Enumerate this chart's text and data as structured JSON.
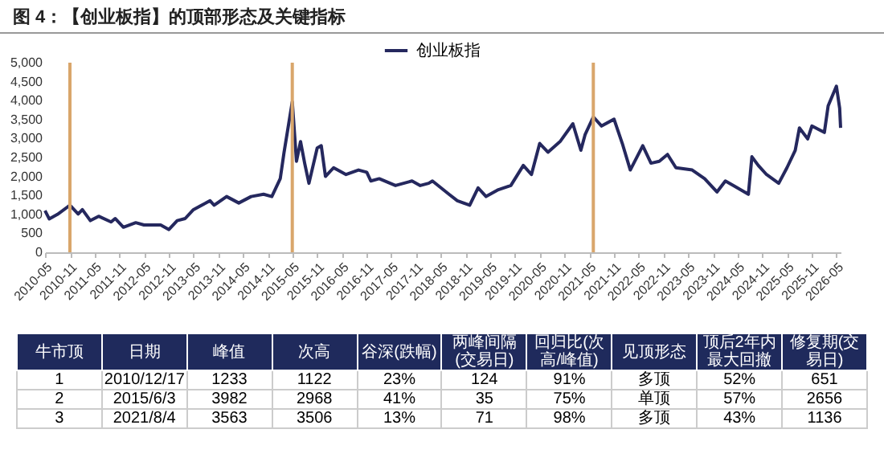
{
  "chart_data": {
    "type": "line",
    "title": "图 4：【创业板指】的顶部形态及关键指标",
    "x": [
      "2010-05",
      "2010-06",
      "2010-08",
      "2010-11",
      "2011-01",
      "2011-02",
      "2011-04",
      "2011-06",
      "2011-09",
      "2011-10",
      "2011-12",
      "2012-03",
      "2012-05",
      "2012-09",
      "2012-11",
      "2013-01",
      "2013-03",
      "2013-05",
      "2013-09",
      "2013-10",
      "2014-01",
      "2014-04",
      "2014-07",
      "2014-10",
      "2014-12",
      "2015-02",
      "2015-03",
      "2015-05",
      "2015-06",
      "2015-07",
      "2015-08",
      "2015-09",
      "2015-11",
      "2015-12",
      "2016-01",
      "2016-03",
      "2016-06",
      "2016-09",
      "2016-11",
      "2016-12",
      "2017-02",
      "2017-06",
      "2017-10",
      "2017-12",
      "2018-02",
      "2018-03",
      "2018-07",
      "2018-09",
      "2018-12",
      "2019-02",
      "2019-04",
      "2019-07",
      "2019-10",
      "2020-01",
      "2020-03",
      "2020-05",
      "2020-07",
      "2020-10",
      "2021-01",
      "2021-03",
      "2021-04",
      "2021-06",
      "2021-08",
      "2021-11",
      "2022-01",
      "2022-03",
      "2022-06",
      "2022-08",
      "2022-10",
      "2022-12",
      "2023-02",
      "2023-06",
      "2023-09",
      "2023-12",
      "2024-02",
      "2024-04",
      "2024-07-20",
      "2024-08-15",
      "2024-10",
      "2024-12",
      "2025-03",
      "2025-05",
      "2025-07",
      "2025-08",
      "2025-10",
      "2025-11",
      "2026-02",
      "2026-03",
      "2026-05",
      "2026-05-25",
      "2026-06"
    ],
    "series": [
      {
        "name": "创业板指",
        "color": "#25285e",
        "values": [
          1100,
          880,
          1000,
          1240,
          1010,
          1125,
          835,
          950,
          800,
          890,
          660,
          780,
          720,
          720,
          600,
          835,
          890,
          1125,
          1360,
          1240,
          1470,
          1300,
          1470,
          1530,
          1470,
          1940,
          2630,
          3970,
          2400,
          2920,
          2340,
          1820,
          2750,
          2810,
          2000,
          2230,
          2050,
          2170,
          2110,
          1880,
          1940,
          1760,
          1880,
          1760,
          1820,
          1880,
          1530,
          1360,
          1240,
          1700,
          1470,
          1650,
          1760,
          2290,
          2050,
          2870,
          2640,
          2930,
          3390,
          2690,
          3100,
          3570,
          3330,
          3510,
          2870,
          2170,
          2810,
          2350,
          2400,
          2580,
          2230,
          2170,
          1940,
          1590,
          1880,
          1760,
          1530,
          2520,
          2290,
          2050,
          1820,
          2230,
          2690,
          3280,
          2990,
          3330,
          3160,
          3860,
          4380,
          3800,
          3280
        ]
      }
    ],
    "xlim": [
      "2010-05",
      "2026-06"
    ],
    "xticks": [
      "2010-05",
      "2010-11",
      "2011-05",
      "2011-11",
      "2012-05",
      "2012-11",
      "2013-05",
      "2013-11",
      "2014-05",
      "2014-11",
      "2015-05",
      "2015-11",
      "2016-05",
      "2016-11",
      "2017-05",
      "2017-11",
      "2018-05",
      "2018-11",
      "2019-05",
      "2019-11",
      "2020-05",
      "2020-11",
      "2021-05",
      "2021-11",
      "2022-05",
      "2022-11",
      "2023-05",
      "2023-11",
      "2024-05",
      "2024-11",
      "2025-05",
      "2025-11",
      "2026-05"
    ],
    "ylim": [
      0,
      5000
    ],
    "yticks": [
      0,
      500,
      {
        "value": 1000,
        "label": "1,000"
      },
      {
        "value": 1500,
        "label": "1,500"
      },
      {
        "value": 2000,
        "label": "2,000"
      },
      {
        "value": 2500,
        "label": "2,500"
      },
      {
        "value": 3000,
        "label": "3,000"
      },
      {
        "value": 3500,
        "label": "3,500"
      },
      {
        "value": 4000,
        "label": "4,000"
      },
      {
        "value": 4500,
        "label": "4,500"
      },
      {
        "value": 5000,
        "label": "5,000"
      }
    ],
    "ref_lines": [
      {
        "axis": "x",
        "value": "2010-11",
        "color": "#d9a66b"
      },
      {
        "axis": "x",
        "value": "2015-05",
        "color": "#d9a66b"
      },
      {
        "axis": "x",
        "value": "2021-06",
        "color": "#d9a66b"
      }
    ],
    "legend": "top",
    "grid": false,
    "marker": "none",
    "line_style": "solid",
    "annotations": [
      "牛市顶",
      "日期",
      "峰值",
      "次高",
      "谷深(跌幅)",
      "两峰间隔(交易日)",
      "回归比(次高/峰值)",
      "见顶形态",
      "顶后2年内最大回撤",
      "修复期(交易日)",
      "1",
      "2010/12/17",
      "1233",
      "1122",
      "23%",
      "124",
      "91%",
      "多顶",
      "52%",
      "651",
      "2",
      "2015/6/3",
      "3982",
      "2968",
      "41%",
      "35",
      "75%",
      "单顶",
      "57%",
      "2656",
      "3",
      "2021/8/4",
      "3563",
      "3506",
      "13%",
      "71",
      "98%",
      "多顶",
      "43%",
      "1136"
    ]
  }
}
